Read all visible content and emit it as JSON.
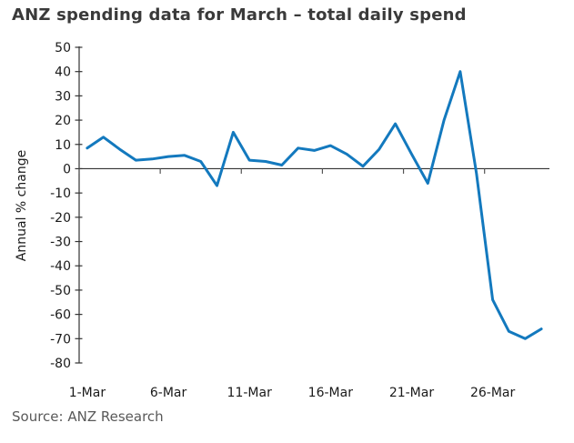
{
  "title": "ANZ spending data for March – total daily spend",
  "source": "Source: ANZ Research",
  "chart_data": {
    "type": "line",
    "title": "ANZ spending data for March – total daily spend",
    "xlabel": "",
    "ylabel": "Annual % change",
    "ylim": [
      -80,
      50
    ],
    "y_ticks": [
      50,
      40,
      30,
      20,
      10,
      0,
      -10,
      -20,
      -30,
      -40,
      -50,
      -60,
      -70,
      -80
    ],
    "x_tick_labels": [
      "1-Mar",
      "6-Mar",
      "11-Mar",
      "16-Mar",
      "21-Mar",
      "26-Mar"
    ],
    "x_tick_days": [
      1,
      6,
      11,
      16,
      21,
      26
    ],
    "x": [
      "1-Mar",
      "2-Mar",
      "3-Mar",
      "4-Mar",
      "5-Mar",
      "6-Mar",
      "7-Mar",
      "8-Mar",
      "9-Mar",
      "10-Mar",
      "11-Mar",
      "12-Mar",
      "13-Mar",
      "14-Mar",
      "15-Mar",
      "16-Mar",
      "17-Mar",
      "18-Mar",
      "19-Mar",
      "20-Mar",
      "21-Mar",
      "22-Mar",
      "23-Mar",
      "24-Mar",
      "25-Mar",
      "26-Mar",
      "27-Mar",
      "28-Mar",
      "29-Mar"
    ],
    "series": [
      {
        "name": "Total daily spend (annual % change)",
        "values": [
          8.5,
          13,
          8,
          3.5,
          4,
          5,
          5.5,
          3,
          -7,
          15,
          3.5,
          3,
          1.5,
          8.5,
          7.5,
          9.5,
          6,
          1,
          8,
          18.5,
          6,
          -6,
          20,
          40,
          -2,
          -54,
          -67,
          -70,
          -66
        ]
      }
    ],
    "line_color": "#1379BE",
    "axis_color": "#333333",
    "tick_label_color": "#1a1a1a",
    "grid": false,
    "legend_position": "none"
  }
}
